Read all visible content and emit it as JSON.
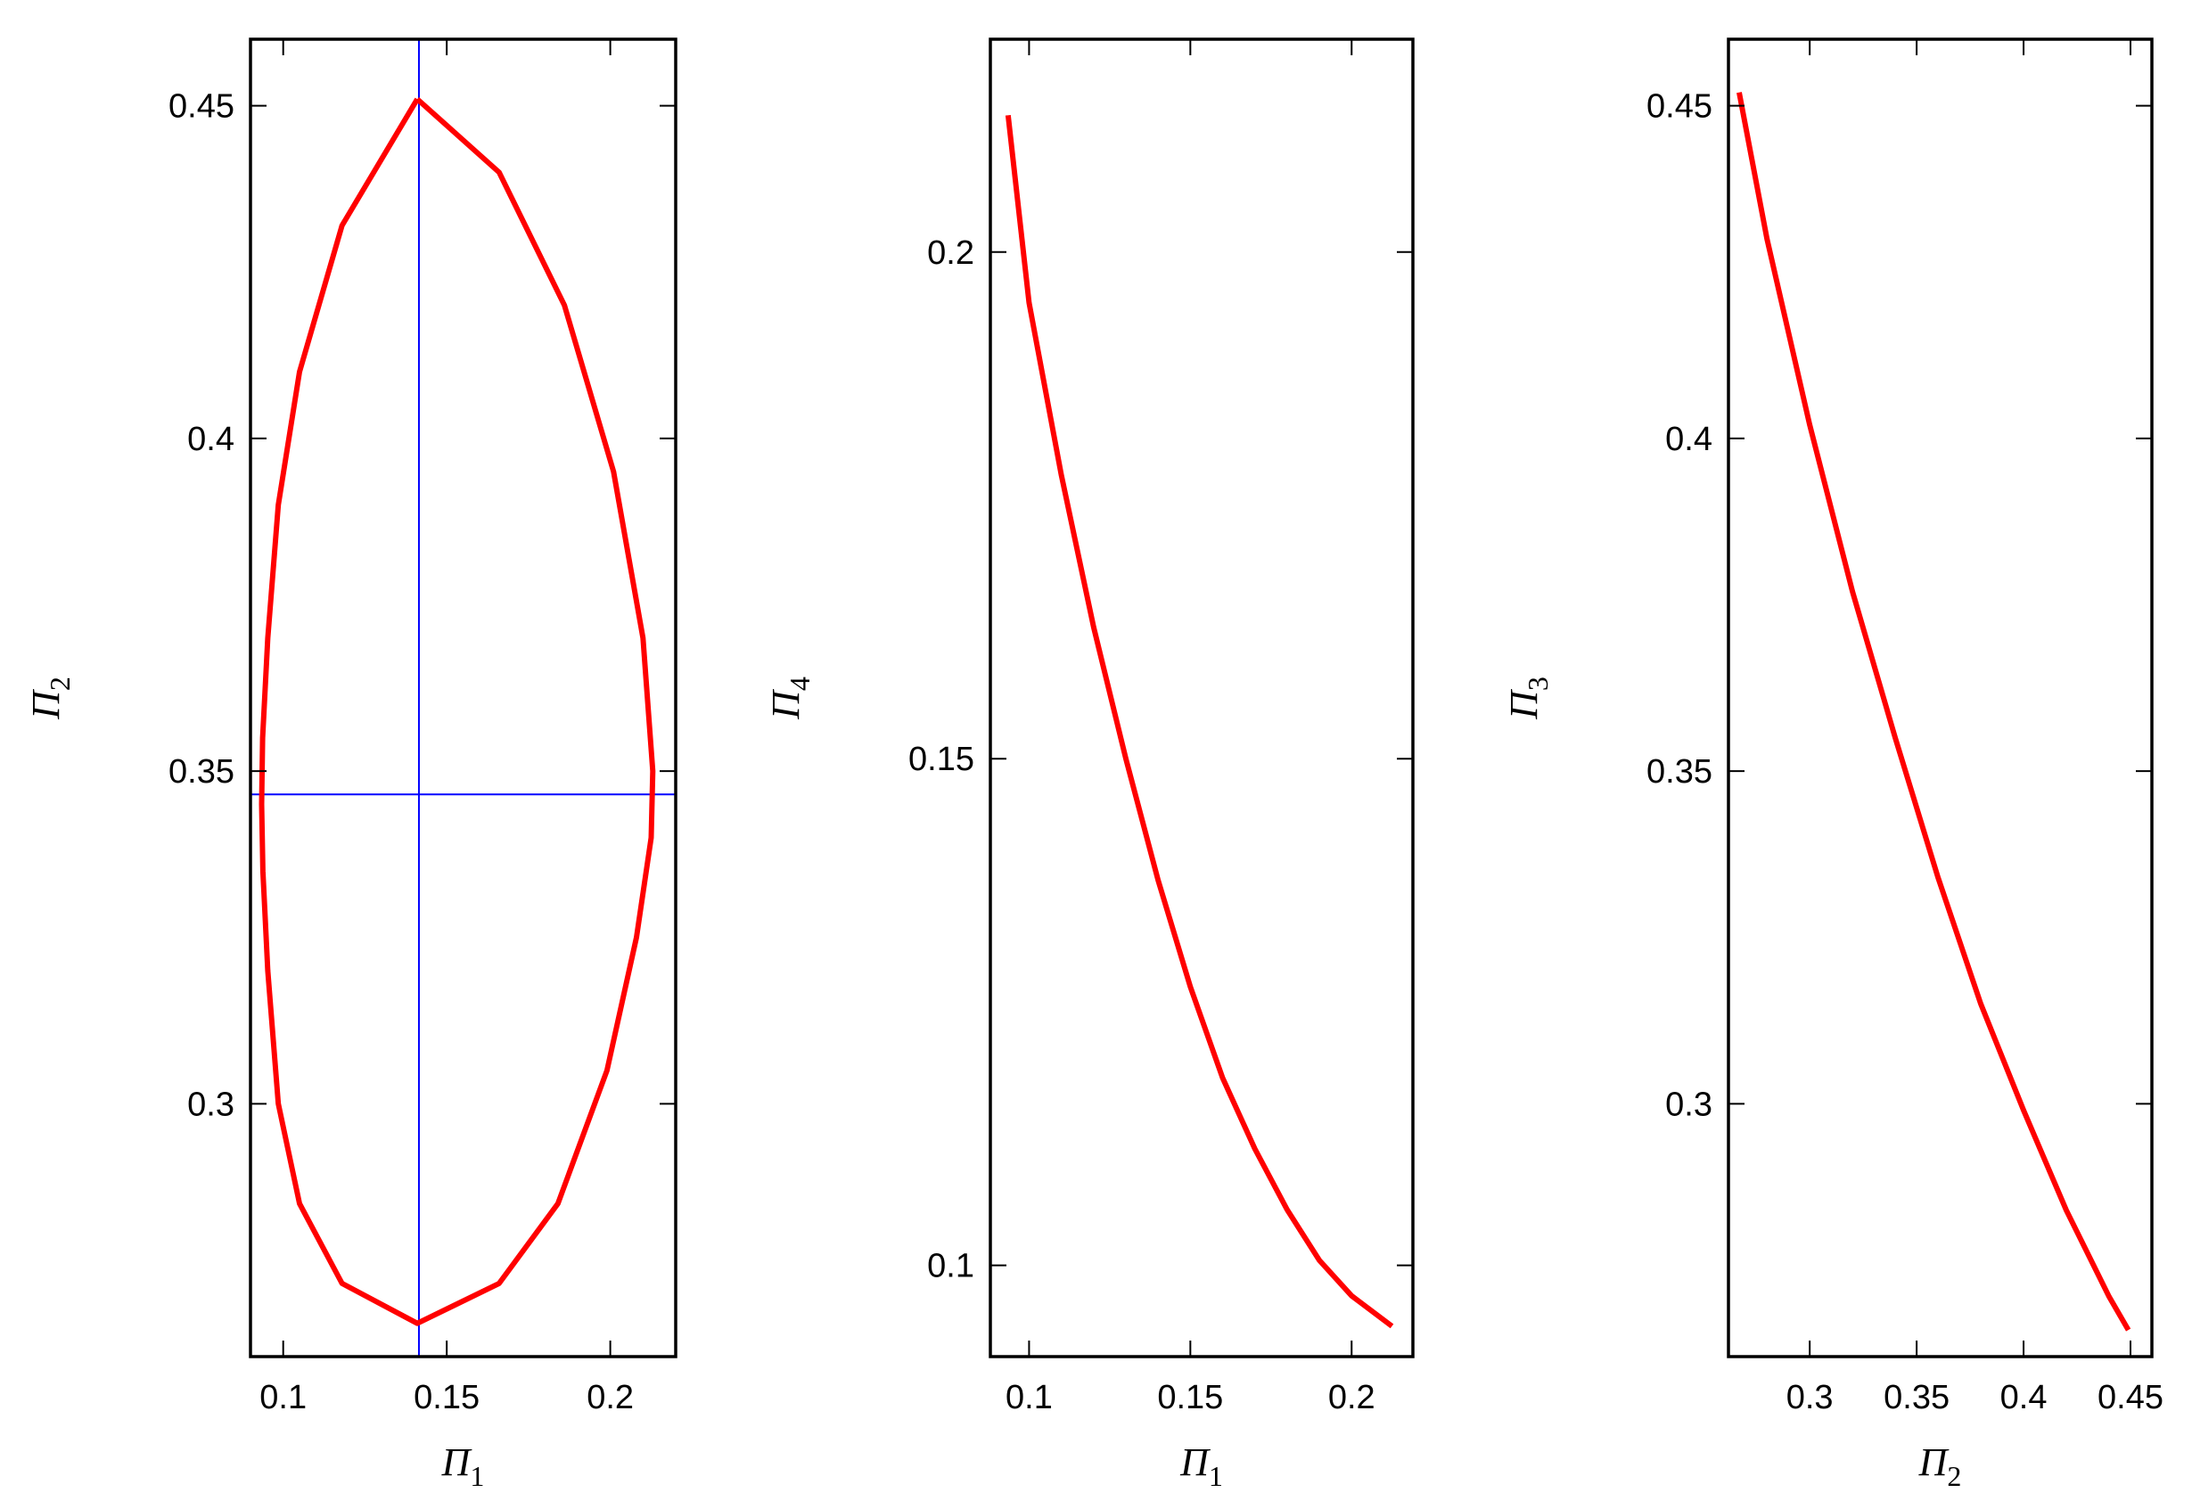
{
  "colors": {
    "curve": "#ff0000",
    "guide": "#0000ff",
    "frame": "#000000"
  },
  "chart_data": [
    {
      "type": "line",
      "xlabel": {
        "base": "Π",
        "sub": "1"
      },
      "ylabel": {
        "base": "Π",
        "sub": "2"
      },
      "xlim": [
        0.09,
        0.22
      ],
      "ylim": [
        0.262,
        0.46
      ],
      "xticks": [
        {
          "value": 0.1,
          "label": "0.1"
        },
        {
          "value": 0.15,
          "label": "0.15"
        },
        {
          "value": 0.2,
          "label": "0.2"
        }
      ],
      "yticks": [
        {
          "value": 0.3,
          "label": "0.3"
        },
        {
          "value": 0.35,
          "label": "0.35"
        },
        {
          "value": 0.4,
          "label": "0.4"
        },
        {
          "value": 0.45,
          "label": "0.45"
        }
      ],
      "series": [
        {
          "color": "#ff0000",
          "x": [
            0.141,
            0.118,
            0.105,
            0.0985,
            0.0953,
            0.0937,
            0.0934,
            0.0938,
            0.0953,
            0.0985,
            0.105,
            0.118,
            0.141,
            0.166,
            0.184,
            0.199,
            0.208,
            0.2125,
            0.213,
            0.21,
            0.201,
            0.186,
            0.166,
            0.141
          ],
          "y": [
            0.451,
            0.432,
            0.41,
            0.39,
            0.37,
            0.355,
            0.345,
            0.335,
            0.32,
            0.3,
            0.285,
            0.273,
            0.267,
            0.273,
            0.285,
            0.305,
            0.325,
            0.34,
            0.35,
            0.37,
            0.395,
            0.42,
            0.44,
            0.451
          ]
        }
      ],
      "reference_lines": {
        "vertical_x": 0.1415,
        "horizontal_y": 0.3465
      }
    },
    {
      "type": "line",
      "xlabel": {
        "base": "Π",
        "sub": "1"
      },
      "ylabel": {
        "base": "Π",
        "sub": "4"
      },
      "xlim": [
        0.088,
        0.219
      ],
      "ylim": [
        0.091,
        0.221
      ],
      "xticks": [
        {
          "value": 0.1,
          "label": "0.1"
        },
        {
          "value": 0.15,
          "label": "0.15"
        },
        {
          "value": 0.2,
          "label": "0.2"
        }
      ],
      "yticks": [
        {
          "value": 0.1,
          "label": "0.1"
        },
        {
          "value": 0.15,
          "label": "0.15"
        },
        {
          "value": 0.2,
          "label": "0.2"
        }
      ],
      "series": [
        {
          "color": "#ff0000",
          "x": [
            0.0935,
            0.1,
            0.11,
            0.12,
            0.13,
            0.14,
            0.15,
            0.16,
            0.17,
            0.18,
            0.19,
            0.2,
            0.2125
          ],
          "y": [
            0.2135,
            0.195,
            0.178,
            0.163,
            0.15,
            0.138,
            0.1275,
            0.1185,
            0.1115,
            0.1055,
            0.1005,
            0.097,
            0.094
          ]
        }
      ]
    },
    {
      "type": "line",
      "xlabel": {
        "base": "Π",
        "sub": "2"
      },
      "ylabel": {
        "base": "Π",
        "sub": "3"
      },
      "xlim": [
        0.262,
        0.46
      ],
      "ylim": [
        0.262,
        0.46
      ],
      "xticks": [
        {
          "value": 0.3,
          "label": "0.3"
        },
        {
          "value": 0.35,
          "label": "0.35"
        },
        {
          "value": 0.4,
          "label": "0.4"
        },
        {
          "value": 0.45,
          "label": "0.45"
        }
      ],
      "yticks": [
        {
          "value": 0.3,
          "label": "0.3"
        },
        {
          "value": 0.35,
          "label": "0.35"
        },
        {
          "value": 0.4,
          "label": "0.4"
        },
        {
          "value": 0.45,
          "label": "0.45"
        }
      ],
      "series": [
        {
          "color": "#ff0000",
          "x": [
            0.267,
            0.28,
            0.3,
            0.32,
            0.34,
            0.36,
            0.38,
            0.4,
            0.42,
            0.44,
            0.449
          ],
          "y": [
            0.452,
            0.43,
            0.402,
            0.377,
            0.355,
            0.334,
            0.315,
            0.299,
            0.284,
            0.271,
            0.266
          ]
        }
      ]
    }
  ]
}
